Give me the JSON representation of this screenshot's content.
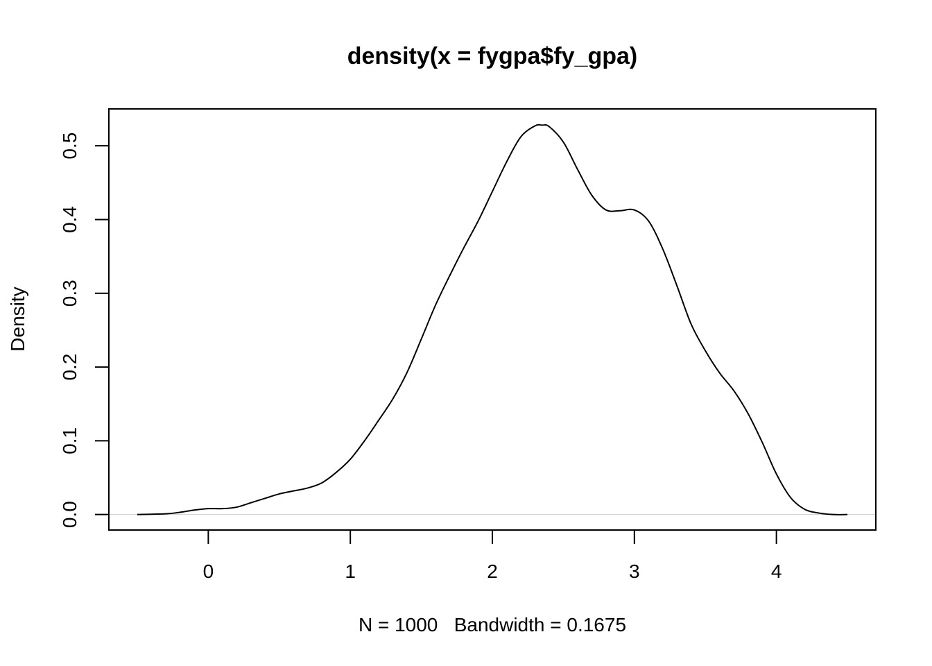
{
  "chart_data": {
    "type": "line",
    "title": "density(x = fygpa$fy_gpa)",
    "xlabel": "N = 1000   Bandwidth = 0.1675",
    "ylabel": "Density",
    "xlim": [
      -0.7,
      4.7
    ],
    "ylim": [
      -0.021,
      0.55
    ],
    "xticks": [
      0,
      1,
      2,
      3,
      4
    ],
    "xtick_labels": [
      "0",
      "1",
      "2",
      "3",
      "4"
    ],
    "yticks": [
      0.0,
      0.1,
      0.2,
      0.3,
      0.4,
      0.5
    ],
    "ytick_labels": [
      "0.0",
      "0.1",
      "0.2",
      "0.3",
      "0.4",
      "0.5"
    ],
    "grid": false,
    "baseline": 0,
    "series": [
      {
        "x": [
          -0.5,
          -0.3,
          -0.2,
          -0.1,
          0.0,
          0.1,
          0.2,
          0.3,
          0.4,
          0.5,
          0.6,
          0.7,
          0.8,
          0.9,
          1.0,
          1.1,
          1.2,
          1.3,
          1.4,
          1.5,
          1.6,
          1.7,
          1.8,
          1.9,
          2.0,
          2.1,
          2.2,
          2.3,
          2.35,
          2.4,
          2.5,
          2.6,
          2.7,
          2.8,
          2.9,
          3.0,
          3.1,
          3.2,
          3.3,
          3.4,
          3.5,
          3.6,
          3.7,
          3.8,
          3.9,
          4.0,
          4.1,
          4.2,
          4.3,
          4.4,
          4.5
        ],
        "y": [
          0.0,
          0.001,
          0.003,
          0.006,
          0.008,
          0.008,
          0.01,
          0.016,
          0.022,
          0.028,
          0.032,
          0.036,
          0.043,
          0.057,
          0.075,
          0.1,
          0.128,
          0.157,
          0.193,
          0.238,
          0.284,
          0.324,
          0.362,
          0.398,
          0.438,
          0.478,
          0.512,
          0.527,
          0.528,
          0.526,
          0.505,
          0.468,
          0.433,
          0.413,
          0.412,
          0.413,
          0.398,
          0.36,
          0.31,
          0.258,
          0.222,
          0.192,
          0.168,
          0.137,
          0.098,
          0.055,
          0.023,
          0.007,
          0.002,
          0.0,
          0.0
        ]
      }
    ]
  }
}
